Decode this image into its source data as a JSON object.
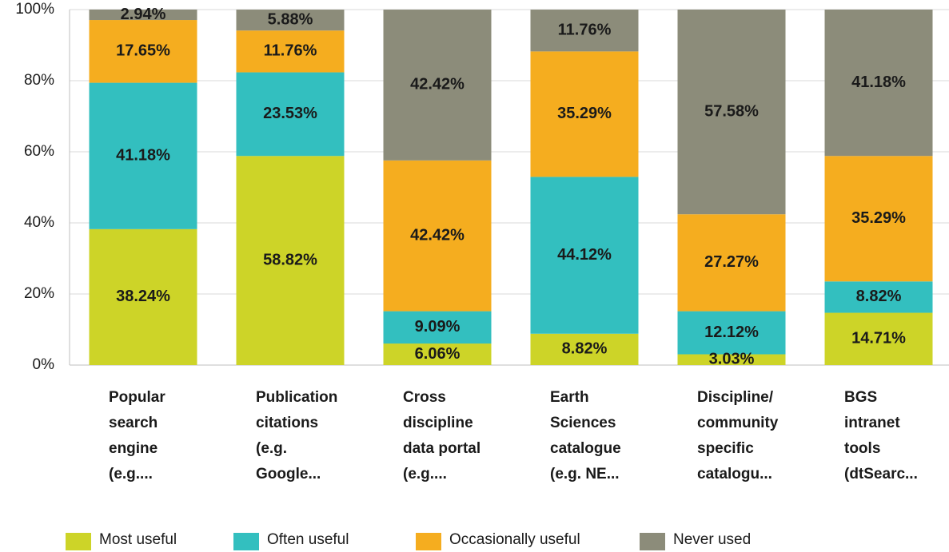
{
  "chart_data": {
    "type": "stacked_bar",
    "categories": [
      [
        "Popular",
        "search",
        "engine",
        "(e.g...."
      ],
      [
        "Publication",
        "citations",
        "(e.g.",
        "Google..."
      ],
      [
        "Cross",
        "discipline",
        "data portal",
        "(e.g...."
      ],
      [
        "Earth",
        "Sciences",
        "catalogue",
        "(e.g. NE..."
      ],
      [
        "Discipline/",
        "community",
        "specific",
        "catalogu..."
      ],
      [
        "BGS",
        "intranet",
        "tools",
        "(dtSearc..."
      ]
    ],
    "series": [
      {
        "name": "Most useful",
        "color": "#cdd428",
        "values": [
          38.24,
          58.82,
          6.06,
          8.82,
          3.03,
          14.71
        ],
        "value_labels": [
          "38.24%",
          "58.82%",
          "6.06%",
          "8.82%",
          "3.03%",
          "14.71%"
        ]
      },
      {
        "name": "Often useful",
        "color": "#33bfbf",
        "values": [
          41.18,
          23.53,
          9.09,
          44.12,
          12.12,
          8.82
        ],
        "value_labels": [
          "41.18%",
          "23.53%",
          "9.09%",
          "44.12%",
          "12.12%",
          "8.82%"
        ]
      },
      {
        "name": "Occasionally useful",
        "color": "#f5ad1f",
        "values": [
          17.65,
          11.76,
          42.42,
          35.29,
          27.27,
          35.29
        ],
        "value_labels": [
          "17.65%",
          "11.76%",
          "42.42%",
          "35.29%",
          "27.27%",
          "35.29%"
        ]
      },
      {
        "name": "Never used",
        "color": "#8c8c7a",
        "values": [
          2.94,
          5.88,
          42.42,
          11.76,
          57.58,
          41.18
        ],
        "value_labels": [
          "2.94%",
          "5.88%",
          "42.42%",
          "11.76%",
          "57.58%",
          "41.18%"
        ]
      }
    ],
    "ylim": [
      0,
      100
    ],
    "yticks": [
      {
        "value": 0,
        "label": "0%"
      },
      {
        "value": 20,
        "label": "20%"
      },
      {
        "value": 40,
        "label": "40%"
      },
      {
        "value": 60,
        "label": "60%"
      },
      {
        "value": 80,
        "label": "80%"
      },
      {
        "value": 100,
        "label": "100%"
      }
    ],
    "grid": true
  }
}
